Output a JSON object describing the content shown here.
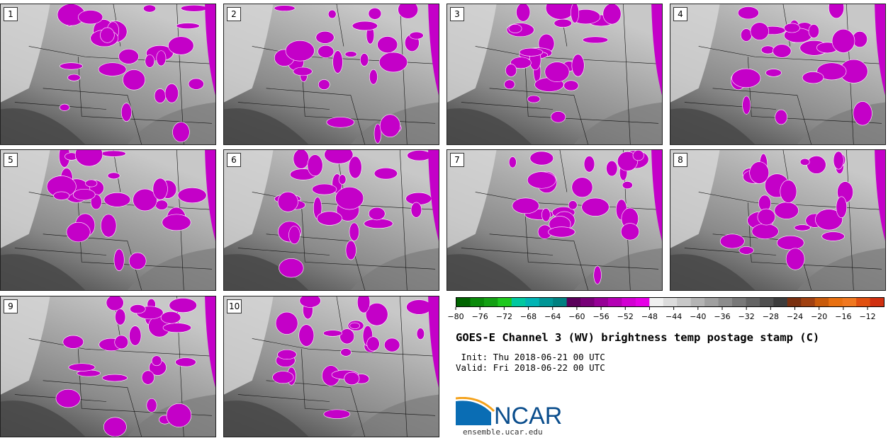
{
  "panels": [
    {
      "label": "1"
    },
    {
      "label": "2"
    },
    {
      "label": "3"
    },
    {
      "label": "4"
    },
    {
      "label": "5"
    },
    {
      "label": "6"
    },
    {
      "label": "7"
    },
    {
      "label": "8"
    },
    {
      "label": "9"
    },
    {
      "label": "10"
    }
  ],
  "colorbar": {
    "ticks": [
      "−80",
      "−76",
      "−72",
      "−68",
      "−64",
      "−60",
      "−56",
      "−52",
      "−48",
      "−44",
      "−40",
      "−36",
      "−32",
      "−28",
      "−24",
      "−20",
      "−16",
      "−12"
    ],
    "colors": [
      "#006400",
      "#0a8a0a",
      "#14a014",
      "#1ec81e",
      "#00c8a0",
      "#00b4b4",
      "#009696",
      "#008080",
      "#5a005a",
      "#780078",
      "#960096",
      "#b400b4",
      "#d200d2",
      "#e600e6",
      "#f0f0f0",
      "#dcdcdc",
      "#c8c8c8",
      "#b4b4b4",
      "#a0a0a0",
      "#8c8c8c",
      "#787878",
      "#646464",
      "#505050",
      "#3c3c3c",
      "#7a3010",
      "#a04010",
      "#c85a0a",
      "#e87010",
      "#f07820",
      "#e05010",
      "#d03010"
    ]
  },
  "header": {
    "title": "GOES-E Channel 3 (WV) brightness temp postage stamp (C)",
    "init": " Init: Thu 2018-06-21 00 UTC",
    "valid": "Valid: Fri 2018-06-22 00 UTC"
  },
  "logo": {
    "text": "NCAR",
    "site": "ensemble.ucar.edu",
    "brand_color": "#0a6db4"
  }
}
